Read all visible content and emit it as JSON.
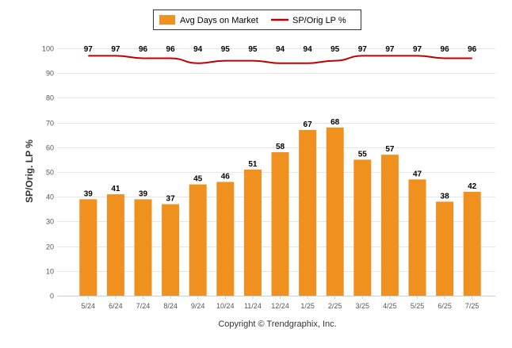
{
  "chart_data": {
    "type": "bar",
    "categories": [
      "5/24",
      "6/24",
      "7/24",
      "8/24",
      "9/24",
      "10/24",
      "11/24",
      "12/24",
      "1/25",
      "2/25",
      "3/25",
      "4/25",
      "5/25",
      "6/25",
      "7/25"
    ],
    "series": [
      {
        "name": "Avg Days on Market",
        "type": "bar",
        "color": "#f0901e",
        "values": [
          39,
          41,
          39,
          37,
          45,
          46,
          51,
          58,
          67,
          68,
          55,
          57,
          47,
          38,
          42
        ]
      },
      {
        "name": "SP/Orig LP %",
        "type": "line",
        "color": "#c00000",
        "values": [
          97,
          97,
          96,
          96,
          94,
          95,
          95,
          94,
          94,
          95,
          97,
          97,
          97,
          96,
          96
        ]
      }
    ],
    "ylabel": "SP/Orig. LP %",
    "ylim": [
      0,
      100
    ],
    "yticks": [
      0,
      10,
      20,
      30,
      40,
      50,
      60,
      70,
      80,
      90,
      100
    ],
    "grid": true,
    "legend_position": "top-center"
  },
  "footer": {
    "copyright": "Copyright © Trendgraphix, Inc."
  }
}
